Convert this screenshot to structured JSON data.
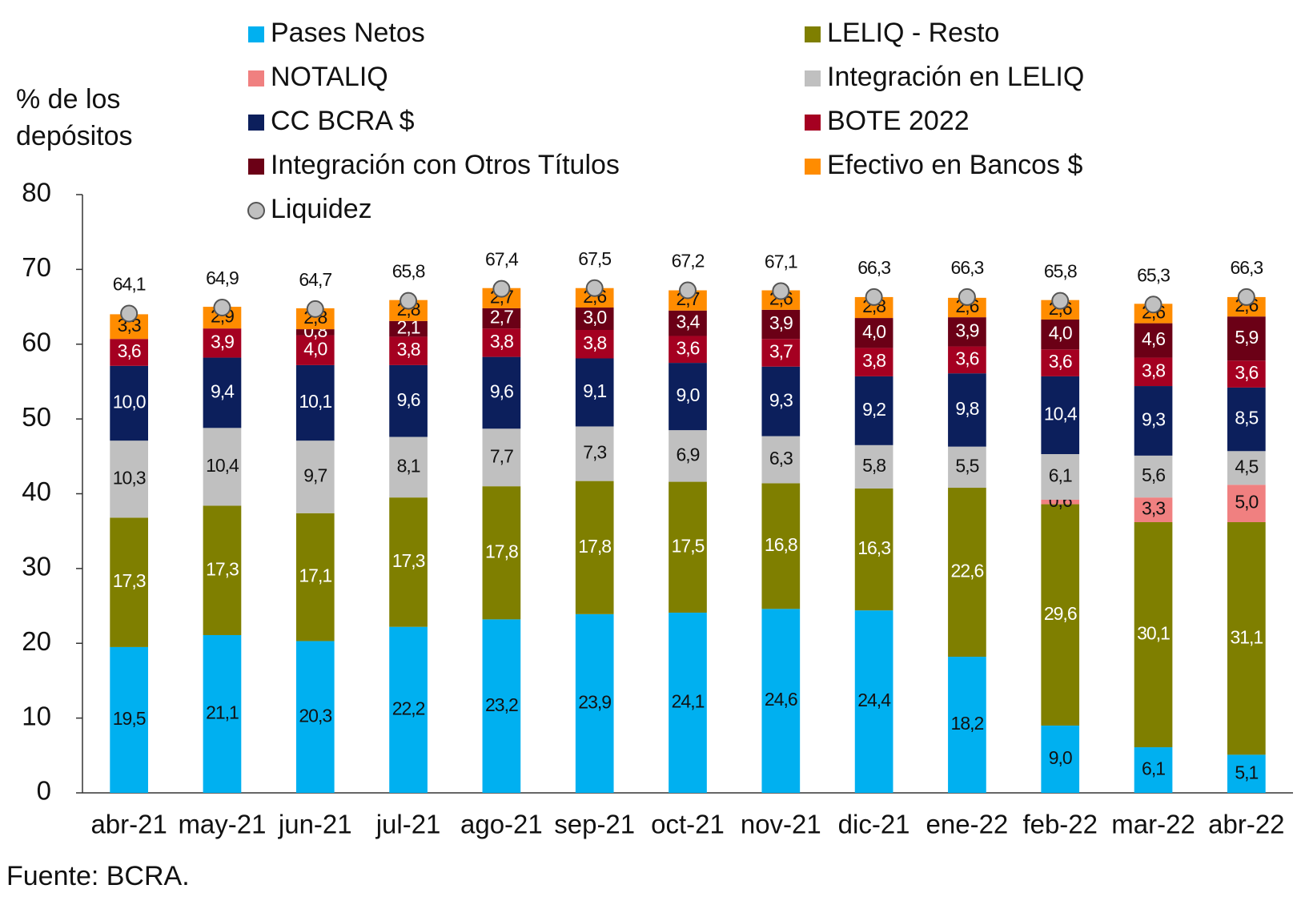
{
  "chart_data": {
    "type": "stacked_bar",
    "y_label": [
      "% de los",
      "depósitos"
    ],
    "source": "Fuente: BCRA.",
    "categories": [
      "abr-21",
      "may-21",
      "jun-21",
      "jul-21",
      "ago-21",
      "sep-21",
      "oct-21",
      "nov-21",
      "dic-21",
      "ene-22",
      "feb-22",
      "mar-22",
      "abr-22"
    ],
    "ylim": [
      0,
      80
    ],
    "yticks": [
      0,
      10,
      20,
      30,
      40,
      50,
      60,
      70,
      80
    ],
    "grid": false,
    "series": [
      {
        "name": "Pases Netos",
        "color": "#00b0f0",
        "values": [
          19.5,
          21.1,
          20.3,
          22.2,
          23.2,
          23.9,
          24.1,
          24.6,
          24.4,
          18.2,
          9.0,
          6.1,
          5.1
        ],
        "value_labels": [
          "19,5",
          "21,1",
          "20,3",
          "22,2",
          "23,2",
          "23,9",
          "24,1",
          "24,6",
          "24,4",
          "18,2",
          "9,0",
          "6,1",
          "5,1"
        ]
      },
      {
        "name": "LELIQ - Resto",
        "color": "#7f7f00",
        "values": [
          17.3,
          17.3,
          17.1,
          17.3,
          17.8,
          17.8,
          17.5,
          16.8,
          16.3,
          22.6,
          29.6,
          30.1,
          31.1
        ],
        "value_labels": [
          "17,3",
          "17,3",
          "17,1",
          "17,3",
          "17,8",
          "17,8",
          "17,5",
          "16,8",
          "16,3",
          "22,6",
          "29,6",
          "30,1",
          "31,1"
        ]
      },
      {
        "name": "NOTALIQ",
        "color": "#f08080",
        "values": [
          null,
          null,
          null,
          null,
          null,
          null,
          null,
          null,
          null,
          null,
          0.6,
          3.3,
          5.0
        ],
        "value_labels": [
          null,
          null,
          null,
          null,
          null,
          null,
          null,
          null,
          null,
          null,
          "0,6",
          "3,3",
          "5,0"
        ]
      },
      {
        "name": "Integración en LELIQ",
        "color": "#c0c0c0",
        "values": [
          10.3,
          10.4,
          9.7,
          8.1,
          7.7,
          7.3,
          6.9,
          6.3,
          5.8,
          5.5,
          6.1,
          5.6,
          4.5
        ],
        "value_labels": [
          "10,3",
          "10,4",
          "9,7",
          "8,1",
          "7,7",
          "7,3",
          "6,9",
          "6,3",
          "5,8",
          "5,5",
          "6,1",
          "5,6",
          "4,5"
        ]
      },
      {
        "name": "CC BCRA $",
        "color": "#0c1f5c",
        "values": [
          10.0,
          9.4,
          10.1,
          9.6,
          9.6,
          9.1,
          9.0,
          9.3,
          9.2,
          9.8,
          10.4,
          9.3,
          8.5
        ],
        "value_labels": [
          "10,0",
          "9,4",
          "10,1",
          "9,6",
          "9,6",
          "9,1",
          "9,0",
          "9,3",
          "9,2",
          "9,8",
          "10,4",
          "9,3",
          "8,5"
        ]
      },
      {
        "name": "BOTE 2022",
        "color": "#a50021",
        "values": [
          3.6,
          3.9,
          4.0,
          3.8,
          3.8,
          3.8,
          3.6,
          3.7,
          3.8,
          3.6,
          3.6,
          3.8,
          3.6
        ],
        "value_labels": [
          "3,6",
          "3,9",
          "4,0",
          "3,8",
          "3,8",
          "3,8",
          "3,6",
          "3,7",
          "3,8",
          "3,6",
          "3,6",
          "3,8",
          "3,6"
        ]
      },
      {
        "name": "Integración con Otros Títulos",
        "color": "#6b0016",
        "values": [
          null,
          null,
          0.8,
          2.1,
          2.7,
          3.0,
          3.4,
          3.9,
          4.0,
          3.9,
          4.0,
          4.6,
          5.9
        ],
        "value_labels": [
          null,
          null,
          "0,8",
          "2,1",
          "2,7",
          "3,0",
          "3,4",
          "3,9",
          "4,0",
          "3,9",
          "4,0",
          "4,6",
          "5,9"
        ]
      },
      {
        "name": "Efectivo en Bancos $",
        "color": "#ff8c00",
        "values": [
          3.3,
          2.9,
          2.8,
          2.8,
          2.7,
          2.6,
          2.7,
          2.6,
          2.8,
          2.6,
          2.6,
          2.6,
          2.6
        ],
        "value_labels": [
          "3,3",
          "2,9",
          "2,8",
          "2,8",
          "2,7",
          "2,6",
          "2,7",
          "2,6",
          "2,8",
          "2,6",
          "2,6",
          "2,6",
          "2,6"
        ]
      }
    ],
    "marker_series": {
      "name": "Liquidez",
      "color": "#c0c0c0",
      "values": [
        64.1,
        64.9,
        64.7,
        65.8,
        67.4,
        67.5,
        67.2,
        67.1,
        66.3,
        66.3,
        65.8,
        65.3,
        66.3
      ],
      "value_labels": [
        "64,1",
        "64,9",
        "64,7",
        "65,8",
        "67,4",
        "67,5",
        "67,2",
        "67,1",
        "66,3",
        "66,3",
        "65,8",
        "65,3",
        "66,3"
      ]
    }
  }
}
